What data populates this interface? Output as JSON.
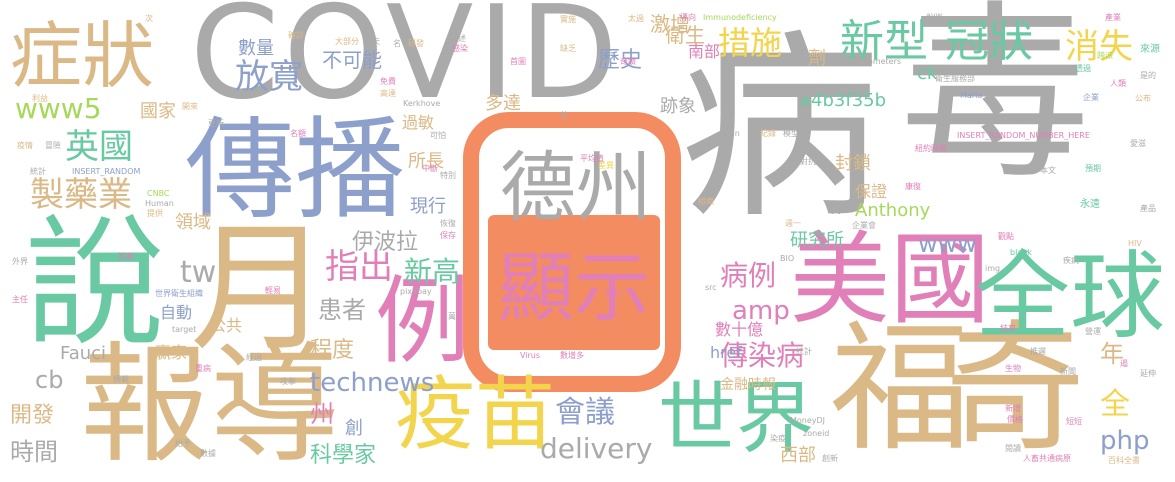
{
  "palette": {
    "gray": "#aaaaaa",
    "green": "#69c9a2",
    "pink": "#e07fb8",
    "yellow": "#f2d54c",
    "tan": "#dbb986",
    "blue": "#8da0cb",
    "orange": "#f48c62",
    "lime": "#a6d85a"
  },
  "words": {
    "covid": "COVID",
    "bing": "病",
    "du": "毒",
    "chuanbo": "傳播",
    "zhengzhuang": "症狀",
    "shuo": "說",
    "yue": "月",
    "baodao": "報導",
    "fuqi1": "福",
    "fuqi2": "奇",
    "meiguo": "美國",
    "quanqiu": "全球",
    "yimiao": "疫苗",
    "shijie": "世界",
    "dezhou": "德州",
    "xianshi": "顯示",
    "li": "例",
    "xinxing": "新型",
    "guanzhuang": "冠狀",
    "xiaoshi": "消失",
    "cuoshi": "措施",
    "fangkuan": "放寬",
    "buke": "不可能",
    "www5": "www5",
    "yingguo": "英國",
    "zhiyaoye": "製藥業",
    "zhichu": "指出",
    "xingao": "新高",
    "bingli": "病例",
    "chuanranbing": "傳染病",
    "huiyi": "會議",
    "delivery": "delivery",
    "technews": "technews",
    "kexuejia": "科學家",
    "shijian": "時間",
    "kaifa": "開發",
    "php": "php",
    "quan": "全",
    "nian": "年",
    "amp": "amp",
    "tw": "tw",
    "www": "www",
    "yanjiusuo": "研究所",
    "yibola": "伊波拉",
    "huanzhe": "患者",
    "chengdu": "程度",
    "zhou": "州",
    "chuang": "創",
    "cb": "cb",
    "fauci": "Fauci",
    "anthony": "Anthony",
    "a4b3f35b": "a4b3f35b",
    "ck": "ck",
    "jiwu": "激增",
    "weisheng": "衛生",
    "nanbu": "南部",
    "lishi": "歷史",
    "shuliang": "數量",
    "guojia": "國家",
    "duoda": "多達",
    "jixiang": "跡象",
    "suozhang": "所長",
    "guomin": "過敏",
    "fengsuo": "封鎖",
    "baozheng": "保證",
    "lingyu": "領域",
    "xianxing": "現行",
    "zidong": "自動",
    "gonggong": "公共",
    "yingjia": "贏家",
    "shushiyi": "數十億",
    "jinrong": "金融時報",
    "href": "href",
    "xibu": "西部",
    "ji": "劑",
    "n": "n",
    "s1": "實施",
    "s2": "太過",
    "s3": "導向",
    "s4": "Immunodeficiency",
    "s5": "avw",
    "s6": "產業",
    "s7": "來源",
    "s8": "大部分",
    "s9": "天",
    "s10": "名",
    "s11": "次",
    "s12": "確診",
    "s13": "研發",
    "s14": "上述",
    "s15": "感染",
    "s16": "缺乏",
    "s17": "Worldometers",
    "s18": "首圖",
    "s19": "奇蹟",
    "s20": "透過",
    "s21": "衛生服務部",
    "s22": "Maria",
    "s23": "人類",
    "s24": "公布",
    "s25": "免費",
    "s26": "高達",
    "s27": "跨派",
    "s28": "是的",
    "s29": "利益",
    "s30": "開來",
    "s31": "Kerkhove",
    "s32": "企業",
    "s33": "紀錄",
    "s34": "模型",
    "s35": "更新",
    "s36": "名額",
    "s37": "可怕",
    "s38": "花",
    "s39": "平均值",
    "s40": "差異",
    "s41": "本文",
    "s42": "INSERT_RANDOM_NUMBER_HERE",
    "s43": "愛滋",
    "s44": "疫情",
    "s45": "冒險",
    "s46": "統計",
    "s47": "INSERT_RANDOM",
    "s48": "中斷",
    "s49": "特別",
    "s50": "對抗",
    "s51": "紐約時報",
    "s52": "預期",
    "s53": "Van",
    "s54": "CNBC",
    "s55": "Human",
    "s56": "提供",
    "s57": "恢復",
    "s58": "保存",
    "s59": "組織",
    "s60": "康復",
    "s61": "永遠",
    "s62": "產品",
    "s63": "週一",
    "s64": "企業會",
    "s65": "HIV",
    "s66": "blank",
    "s67": "疾病",
    "s68": "外界",
    "s69": "答案",
    "s70": "觀點",
    "s71": "BIO",
    "s72": "img",
    "s73": "主任",
    "s74": "世界衛生組織",
    "s75": "輕易",
    "s76": "pixabay",
    "s77": "管制",
    "s78": "src",
    "s79": "結束",
    "s80": "營運",
    "s81": "target",
    "s82": "萬",
    "s83": "Virus",
    "s84": "數增多",
    "s85": "延伸",
    "s86": "遏",
    "s87": "重病",
    "s88": "攻擊",
    "s89": "經過",
    "s90": "推遲",
    "s91": "新聞",
    "s92": "生物",
    "s93": "統計",
    "s94": "轉載",
    "s95": "給予",
    "s96": "數據",
    "s97": "MoneyDJ",
    "s98": "染疫",
    "s99": "zoneid",
    "s100": "價格",
    "s101": "創新",
    "s102": "新增",
    "s103": "短短",
    "s104": "人畜共通病原",
    "s105": "百科全書",
    "s106": "閱讀"
  }
}
